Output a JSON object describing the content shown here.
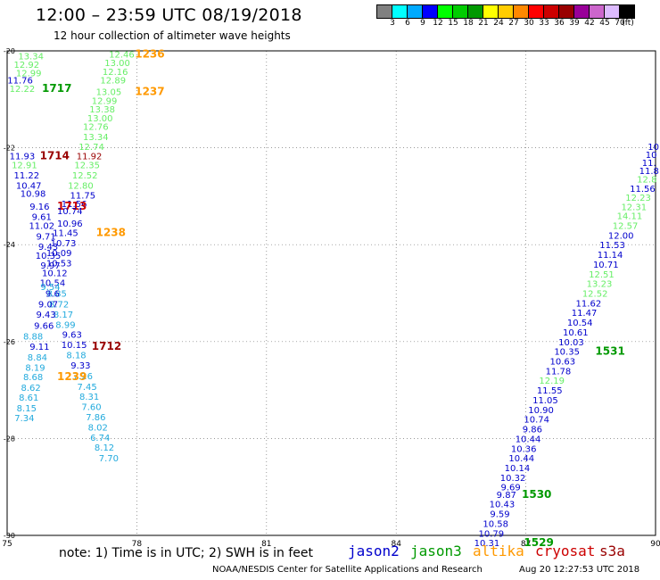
{
  "header": {
    "title": "12:00 – 23:59 UTC 08/19/2018",
    "subtitle": "12 hour collection of altimeter wave heights"
  },
  "colorbar": {
    "colors": [
      "#808080",
      "#00ffff",
      "#00aaff",
      "#0000ff",
      "#00ff00",
      "#00cc00",
      "#009900",
      "#ffff00",
      "#ffcc00",
      "#ff8800",
      "#ff0000",
      "#cc0000",
      "#990000",
      "#990099",
      "#cc66cc",
      "#ddbbff",
      "#000000"
    ],
    "labels": [
      "3",
      "6",
      "9",
      "12",
      "15",
      "18",
      "21",
      "24",
      "27",
      "30",
      "33",
      "36",
      "39",
      "42",
      "45",
      "70",
      "(ft)"
    ]
  },
  "axes": {
    "lon_ticks": [
      "75",
      "78",
      "81",
      "84",
      "87",
      "90"
    ],
    "lat_ticks": [
      "-20",
      "-22",
      "-24",
      "-26",
      "-28",
      "-30"
    ]
  },
  "legend": [
    {
      "name": "jason2",
      "color": "#0000cc"
    },
    {
      "name": "jason3",
      "color": "#009900"
    },
    {
      "name": "altika",
      "color": "#ff9900"
    },
    {
      "name": "cryosat",
      "color": "#cc0000"
    },
    {
      "name": "s3a",
      "color": "#990000"
    }
  ],
  "footer": {
    "note": "note:  1) Time is in UTC;  2) SWH is in feet",
    "credit": "NOAA/NESDIS Center for Satellite Applications and Research",
    "timestamp": "Aug 20 12:27:53 UTC 2018"
  },
  "chart_data": {
    "type": "scatter",
    "xlim": [
      75,
      90
    ],
    "ylim": [
      -30,
      -20
    ],
    "grid": "dotted",
    "markers": [
      {
        "lon": 75.55,
        "lat": -20.1,
        "text": "13.34",
        "color": "#66ee66"
      },
      {
        "lon": 75.45,
        "lat": -20.28,
        "text": "12.92",
        "color": "#66ee66"
      },
      {
        "lon": 75.5,
        "lat": -20.45,
        "text": "12.99",
        "color": "#66ee66"
      },
      {
        "lon": 75.3,
        "lat": -20.6,
        "text": "11.76",
        "color": "#0000cc"
      },
      {
        "lon": 75.35,
        "lat": -20.77,
        "text": "12.22",
        "color": "#66ee66"
      },
      {
        "lon": 76.15,
        "lat": -20.77,
        "text": "1717",
        "color": "#009900",
        "bold": true
      },
      {
        "lon": 77.65,
        "lat": -20.06,
        "text": "12.46",
        "color": "#66ee66"
      },
      {
        "lon": 78.3,
        "lat": -20.06,
        "text": "1236",
        "color": "#ff9900",
        "bold": true
      },
      {
        "lon": 77.55,
        "lat": -20.24,
        "text": "13.00",
        "color": "#66ee66"
      },
      {
        "lon": 77.5,
        "lat": -20.42,
        "text": "12.16",
        "color": "#66ee66"
      },
      {
        "lon": 77.45,
        "lat": -20.6,
        "text": "12.89",
        "color": "#66ee66"
      },
      {
        "lon": 77.35,
        "lat": -20.84,
        "text": "13.05",
        "color": "#66ee66"
      },
      {
        "lon": 78.3,
        "lat": -20.84,
        "text": "1237",
        "color": "#ff9900",
        "bold": true
      },
      {
        "lon": 77.25,
        "lat": -21.02,
        "text": "12.99",
        "color": "#66ee66"
      },
      {
        "lon": 77.2,
        "lat": -21.2,
        "text": "13.38",
        "color": "#66ee66"
      },
      {
        "lon": 77.15,
        "lat": -21.38,
        "text": "13.00",
        "color": "#66ee66"
      },
      {
        "lon": 77.05,
        "lat": -21.56,
        "text": "12.76",
        "color": "#66ee66"
      },
      {
        "lon": 77.05,
        "lat": -21.77,
        "text": "13.34",
        "color": "#66ee66"
      },
      {
        "lon": 76.95,
        "lat": -21.97,
        "text": "12.74",
        "color": "#66ee66"
      },
      {
        "lon": 75.35,
        "lat": -22.16,
        "text": "11.93",
        "color": "#0000cc"
      },
      {
        "lon": 76.1,
        "lat": -22.16,
        "text": "1714",
        "color": "#990000",
        "bold": true
      },
      {
        "lon": 76.9,
        "lat": -22.16,
        "text": "11.92",
        "color": "#990000"
      },
      {
        "lon": 75.4,
        "lat": -22.35,
        "text": "12.91",
        "color": "#66ee66"
      },
      {
        "lon": 76.85,
        "lat": -22.35,
        "text": "12.35",
        "color": "#66ee66"
      },
      {
        "lon": 75.45,
        "lat": -22.56,
        "text": "11.22",
        "color": "#0000cc"
      },
      {
        "lon": 76.8,
        "lat": -22.56,
        "text": "12.52",
        "color": "#66ee66"
      },
      {
        "lon": 75.5,
        "lat": -22.77,
        "text": "10.47",
        "color": "#0000cc"
      },
      {
        "lon": 76.7,
        "lat": -22.77,
        "text": "12.80",
        "color": "#66ee66"
      },
      {
        "lon": 75.6,
        "lat": -22.94,
        "text": "10.98",
        "color": "#0000cc"
      },
      {
        "lon": 76.75,
        "lat": -22.97,
        "text": "11.75",
        "color": "#0000cc"
      },
      {
        "lon": 76.55,
        "lat": -23.15,
        "text": "11.56",
        "color": "#0000cc"
      },
      {
        "lon": 75.75,
        "lat": -23.2,
        "text": "9.16",
        "color": "#0000cc"
      },
      {
        "lon": 76.5,
        "lat": -23.2,
        "text": "1713",
        "color": "#cc0000",
        "bold": true
      },
      {
        "lon": 76.45,
        "lat": -23.3,
        "text": "10.74",
        "color": "#0000cc"
      },
      {
        "lon": 75.8,
        "lat": -23.42,
        "text": "9.61",
        "color": "#0000cc"
      },
      {
        "lon": 76.45,
        "lat": -23.55,
        "text": "10.96",
        "color": "#0000cc"
      },
      {
        "lon": 75.8,
        "lat": -23.6,
        "text": "11.02",
        "color": "#0000cc"
      },
      {
        "lon": 76.35,
        "lat": -23.75,
        "text": "11.45",
        "color": "#0000cc"
      },
      {
        "lon": 77.4,
        "lat": -23.75,
        "text": "1238",
        "color": "#ff9900",
        "bold": true
      },
      {
        "lon": 75.9,
        "lat": -23.82,
        "text": "9.71",
        "color": "#0000cc"
      },
      {
        "lon": 76.3,
        "lat": -23.96,
        "text": "10.73",
        "color": "#0000cc"
      },
      {
        "lon": 75.95,
        "lat": -24.03,
        "text": "9.43",
        "color": "#0000cc"
      },
      {
        "lon": 76.2,
        "lat": -24.16,
        "text": "10.09",
        "color": "#0000cc"
      },
      {
        "lon": 75.95,
        "lat": -24.22,
        "text": "10.35",
        "color": "#0000cc"
      },
      {
        "lon": 76.2,
        "lat": -24.37,
        "text": "10.53",
        "color": "#0000cc"
      },
      {
        "lon": 76.0,
        "lat": -24.42,
        "text": "9.97",
        "color": "#0000cc"
      },
      {
        "lon": 76.1,
        "lat": -24.58,
        "text": "10.12",
        "color": "#0000cc"
      },
      {
        "lon": 76.05,
        "lat": -24.78,
        "text": "10.54",
        "color": "#0000cc"
      },
      {
        "lon": 76.0,
        "lat": -24.86,
        "text": "9.54",
        "color": "#22aadd"
      },
      {
        "lon": 76.15,
        "lat": -25.0,
        "text": "8.85",
        "color": "#22aadd"
      },
      {
        "lon": 76.05,
        "lat": -25.0,
        "text": "9.6",
        "color": "#0000cc"
      },
      {
        "lon": 76.2,
        "lat": -25.22,
        "text": "8.72",
        "color": "#22aadd"
      },
      {
        "lon": 75.95,
        "lat": -25.22,
        "text": "9.07",
        "color": "#0000cc"
      },
      {
        "lon": 76.3,
        "lat": -25.43,
        "text": "8.17",
        "color": "#22aadd"
      },
      {
        "lon": 75.9,
        "lat": -25.43,
        "text": "9.43",
        "color": "#0000cc"
      },
      {
        "lon": 76.35,
        "lat": -25.64,
        "text": "8.99",
        "color": "#22aadd"
      },
      {
        "lon": 75.85,
        "lat": -25.66,
        "text": "9.66",
        "color": "#0000cc"
      },
      {
        "lon": 76.5,
        "lat": -25.85,
        "text": "9.63",
        "color": "#0000cc"
      },
      {
        "lon": 75.6,
        "lat": -25.88,
        "text": "8.88",
        "color": "#22aadd"
      },
      {
        "lon": 76.55,
        "lat": -26.06,
        "text": "10.15",
        "color": "#0000cc"
      },
      {
        "lon": 75.75,
        "lat": -26.1,
        "text": "9.11",
        "color": "#0000cc"
      },
      {
        "lon": 77.3,
        "lat": -26.1,
        "text": "1712",
        "color": "#990000",
        "bold": true
      },
      {
        "lon": 76.6,
        "lat": -26.27,
        "text": "8.18",
        "color": "#22aadd"
      },
      {
        "lon": 75.7,
        "lat": -26.32,
        "text": "8.84",
        "color": "#22aadd"
      },
      {
        "lon": 76.7,
        "lat": -26.48,
        "text": "9.33",
        "color": "#0000cc"
      },
      {
        "lon": 75.65,
        "lat": -26.53,
        "text": "8.19",
        "color": "#22aadd"
      },
      {
        "lon": 76.75,
        "lat": -26.7,
        "text": "7.26",
        "color": "#22aadd"
      },
      {
        "lon": 75.6,
        "lat": -26.72,
        "text": "8.68",
        "color": "#22aadd"
      },
      {
        "lon": 76.5,
        "lat": -26.72,
        "text": "1239",
        "color": "#ff9900",
        "bold": true
      },
      {
        "lon": 76.85,
        "lat": -26.92,
        "text": "7.45",
        "color": "#22aadd"
      },
      {
        "lon": 75.55,
        "lat": -26.94,
        "text": "8.62",
        "color": "#22aadd"
      },
      {
        "lon": 76.9,
        "lat": -27.13,
        "text": "8.31",
        "color": "#22aadd"
      },
      {
        "lon": 75.5,
        "lat": -27.15,
        "text": "8.61",
        "color": "#22aadd"
      },
      {
        "lon": 76.95,
        "lat": -27.34,
        "text": "7.60",
        "color": "#22aadd"
      },
      {
        "lon": 75.45,
        "lat": -27.37,
        "text": "8.15",
        "color": "#22aadd"
      },
      {
        "lon": 77.05,
        "lat": -27.55,
        "text": "7.86",
        "color": "#22aadd"
      },
      {
        "lon": 75.4,
        "lat": -27.57,
        "text": "7.34",
        "color": "#22aadd"
      },
      {
        "lon": 77.1,
        "lat": -27.76,
        "text": "8.02",
        "color": "#22aadd"
      },
      {
        "lon": 77.15,
        "lat": -27.97,
        "text": "6.74",
        "color": "#22aadd"
      },
      {
        "lon": 77.25,
        "lat": -28.18,
        "text": "8.12",
        "color": "#22aadd"
      },
      {
        "lon": 77.35,
        "lat": -28.4,
        "text": "7.70",
        "color": "#22aadd"
      },
      {
        "lon": 89.95,
        "lat": -21.97,
        "text": "10",
        "color": "#0000cc"
      },
      {
        "lon": 89.9,
        "lat": -22.14,
        "text": "10",
        "color": "#0000cc"
      },
      {
        "lon": 89.85,
        "lat": -22.3,
        "text": "11.",
        "color": "#0000cc"
      },
      {
        "lon": 89.85,
        "lat": -22.47,
        "text": "11.8",
        "color": "#0000cc"
      },
      {
        "lon": 89.8,
        "lat": -22.64,
        "text": "12.8",
        "color": "#66ee66"
      },
      {
        "lon": 89.7,
        "lat": -22.84,
        "text": "11.56",
        "color": "#0000cc"
      },
      {
        "lon": 89.6,
        "lat": -23.02,
        "text": "12.23",
        "color": "#66ee66"
      },
      {
        "lon": 89.5,
        "lat": -23.21,
        "text": "12.31",
        "color": "#66ee66"
      },
      {
        "lon": 89.4,
        "lat": -23.4,
        "text": "14.11",
        "color": "#66ee66"
      },
      {
        "lon": 89.3,
        "lat": -23.6,
        "text": "12.57",
        "color": "#66ee66"
      },
      {
        "lon": 89.2,
        "lat": -23.8,
        "text": "12.00",
        "color": "#0000cc"
      },
      {
        "lon": 89.0,
        "lat": -24.0,
        "text": "11.53",
        "color": "#0000cc"
      },
      {
        "lon": 88.95,
        "lat": -24.2,
        "text": "11.14",
        "color": "#0000cc"
      },
      {
        "lon": 88.85,
        "lat": -24.4,
        "text": "10.71",
        "color": "#0000cc"
      },
      {
        "lon": 88.75,
        "lat": -24.6,
        "text": "12.51",
        "color": "#66ee66"
      },
      {
        "lon": 88.7,
        "lat": -24.8,
        "text": "13.23",
        "color": "#66ee66"
      },
      {
        "lon": 88.6,
        "lat": -25.0,
        "text": "12.52",
        "color": "#66ee66"
      },
      {
        "lon": 88.45,
        "lat": -25.2,
        "text": "11.62",
        "color": "#0000cc"
      },
      {
        "lon": 88.35,
        "lat": -25.4,
        "text": "11.47",
        "color": "#0000cc"
      },
      {
        "lon": 88.25,
        "lat": -25.6,
        "text": "10.54",
        "color": "#0000cc"
      },
      {
        "lon": 88.15,
        "lat": -25.8,
        "text": "10.61",
        "color": "#0000cc"
      },
      {
        "lon": 88.05,
        "lat": -26.0,
        "text": "10.03",
        "color": "#0000cc"
      },
      {
        "lon": 87.95,
        "lat": -26.2,
        "text": "10.35",
        "color": "#0000cc"
      },
      {
        "lon": 88.95,
        "lat": -26.2,
        "text": "1531",
        "color": "#009900",
        "bold": true
      },
      {
        "lon": 87.85,
        "lat": -26.4,
        "text": "10.63",
        "color": "#0000cc"
      },
      {
        "lon": 87.75,
        "lat": -26.6,
        "text": "11.78",
        "color": "#0000cc"
      },
      {
        "lon": 87.6,
        "lat": -26.8,
        "text": "12.19",
        "color": "#66ee66"
      },
      {
        "lon": 87.55,
        "lat": -27.0,
        "text": "11.55",
        "color": "#0000cc"
      },
      {
        "lon": 87.45,
        "lat": -27.2,
        "text": "11.05",
        "color": "#0000cc"
      },
      {
        "lon": 87.35,
        "lat": -27.4,
        "text": "10.90",
        "color": "#0000cc"
      },
      {
        "lon": 87.25,
        "lat": -27.6,
        "text": "10.74",
        "color": "#0000cc"
      },
      {
        "lon": 87.15,
        "lat": -27.8,
        "text": "9.86",
        "color": "#0000cc"
      },
      {
        "lon": 87.05,
        "lat": -28.0,
        "text": "10.44",
        "color": "#0000cc"
      },
      {
        "lon": 86.95,
        "lat": -28.2,
        "text": "10.36",
        "color": "#0000cc"
      },
      {
        "lon": 86.9,
        "lat": -28.4,
        "text": "10.44",
        "color": "#0000cc"
      },
      {
        "lon": 86.8,
        "lat": -28.6,
        "text": "10.14",
        "color": "#0000cc"
      },
      {
        "lon": 86.7,
        "lat": -28.8,
        "text": "10.32",
        "color": "#0000cc"
      },
      {
        "lon": 86.65,
        "lat": -29.0,
        "text": "9.69",
        "color": "#0000cc"
      },
      {
        "lon": 86.55,
        "lat": -29.15,
        "text": "9.87",
        "color": "#0000cc"
      },
      {
        "lon": 87.25,
        "lat": -29.15,
        "text": "1530",
        "color": "#009900",
        "bold": true
      },
      {
        "lon": 86.45,
        "lat": -29.35,
        "text": "10.43",
        "color": "#0000cc"
      },
      {
        "lon": 86.4,
        "lat": -29.55,
        "text": "9.59",
        "color": "#0000cc"
      },
      {
        "lon": 86.3,
        "lat": -29.75,
        "text": "10.58",
        "color": "#0000cc"
      },
      {
        "lon": 86.2,
        "lat": -29.95,
        "text": "10.79",
        "color": "#0000cc"
      },
      {
        "lon": 86.1,
        "lat": -30.15,
        "text": "10.31",
        "color": "#0000cc"
      },
      {
        "lon": 87.3,
        "lat": -30.15,
        "text": "1529",
        "color": "#009900",
        "bold": true
      }
    ]
  }
}
